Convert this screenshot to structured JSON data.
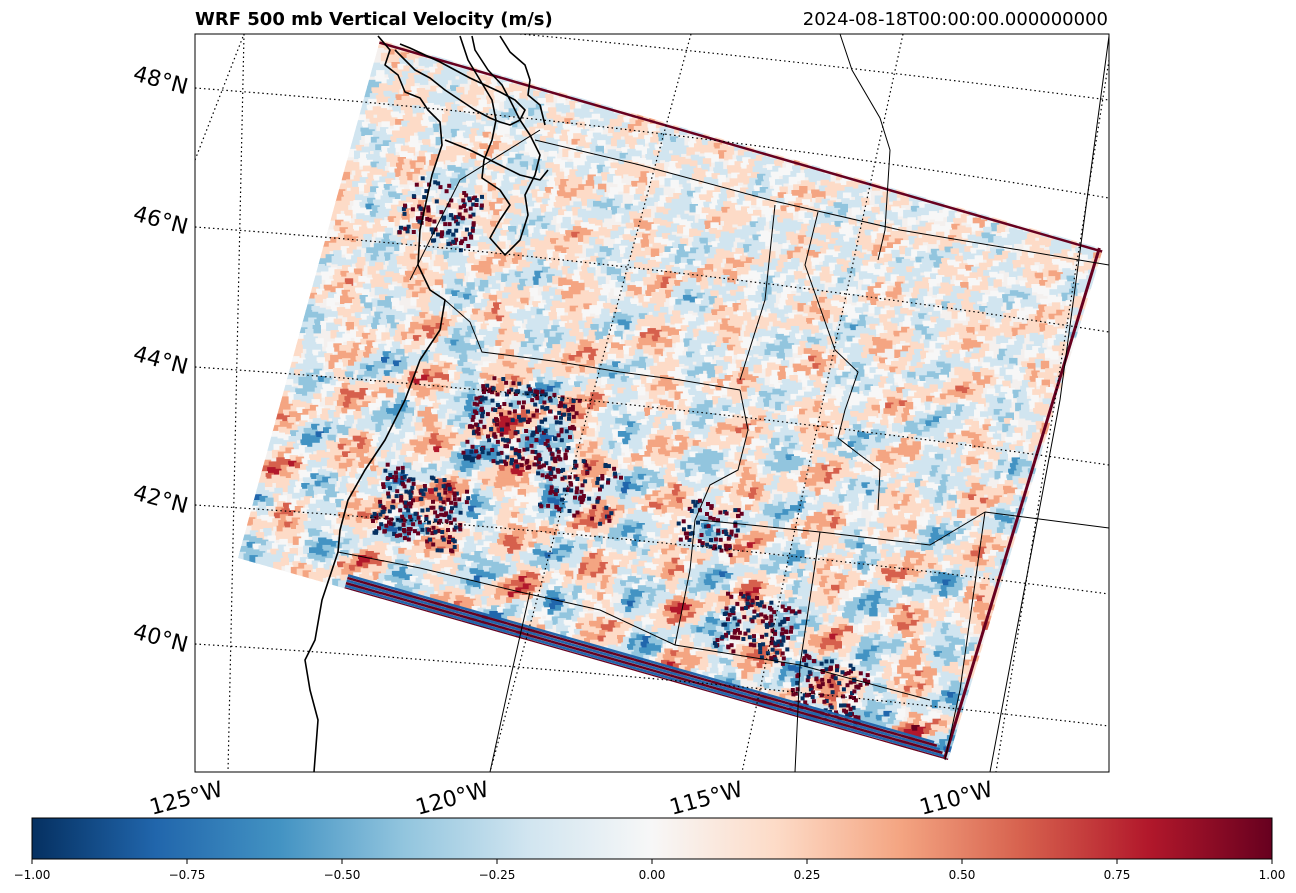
{
  "title": "WRF 500 mb Vertical Velocity (m/s)",
  "timestamp": "2024-08-18T00:00:00.000000000",
  "lat_labels": [
    "48°N",
    "46°N",
    "44°N",
    "42°N",
    "40°N"
  ],
  "lon_labels": [
    "125°W",
    "120°W",
    "115°W",
    "110°W"
  ],
  "colorbar": {
    "min": -1.0,
    "max": 1.0,
    "cmap": "RdBu_r",
    "colors": [
      "#053061",
      "#2166ac",
      "#4393c3",
      "#92c5de",
      "#d1e5f0",
      "#f7f7f7",
      "#fddbc7",
      "#f4a582",
      "#d6604d",
      "#b2182b",
      "#67001f"
    ],
    "tick_labels": [
      "−1.00",
      "−0.75",
      "−0.50",
      "−0.25",
      "0.00",
      "0.25",
      "0.50",
      "0.75",
      "1.00"
    ]
  },
  "chart_data": {
    "type": "heatmap",
    "title": "WRF 500 mb Vertical Velocity (m/s)",
    "variable": "Vertical Velocity",
    "units": "m/s",
    "level": "500 mb",
    "valid_time": "2024-08-18T00:00:00.000000000",
    "color_range": [
      -1.0,
      1.0
    ],
    "lat_gridlines_deg_n": [
      40,
      42,
      44,
      46,
      48
    ],
    "lon_gridlines_deg_w": [
      125,
      120,
      115,
      110
    ],
    "gridlines": "dotted"
  }
}
